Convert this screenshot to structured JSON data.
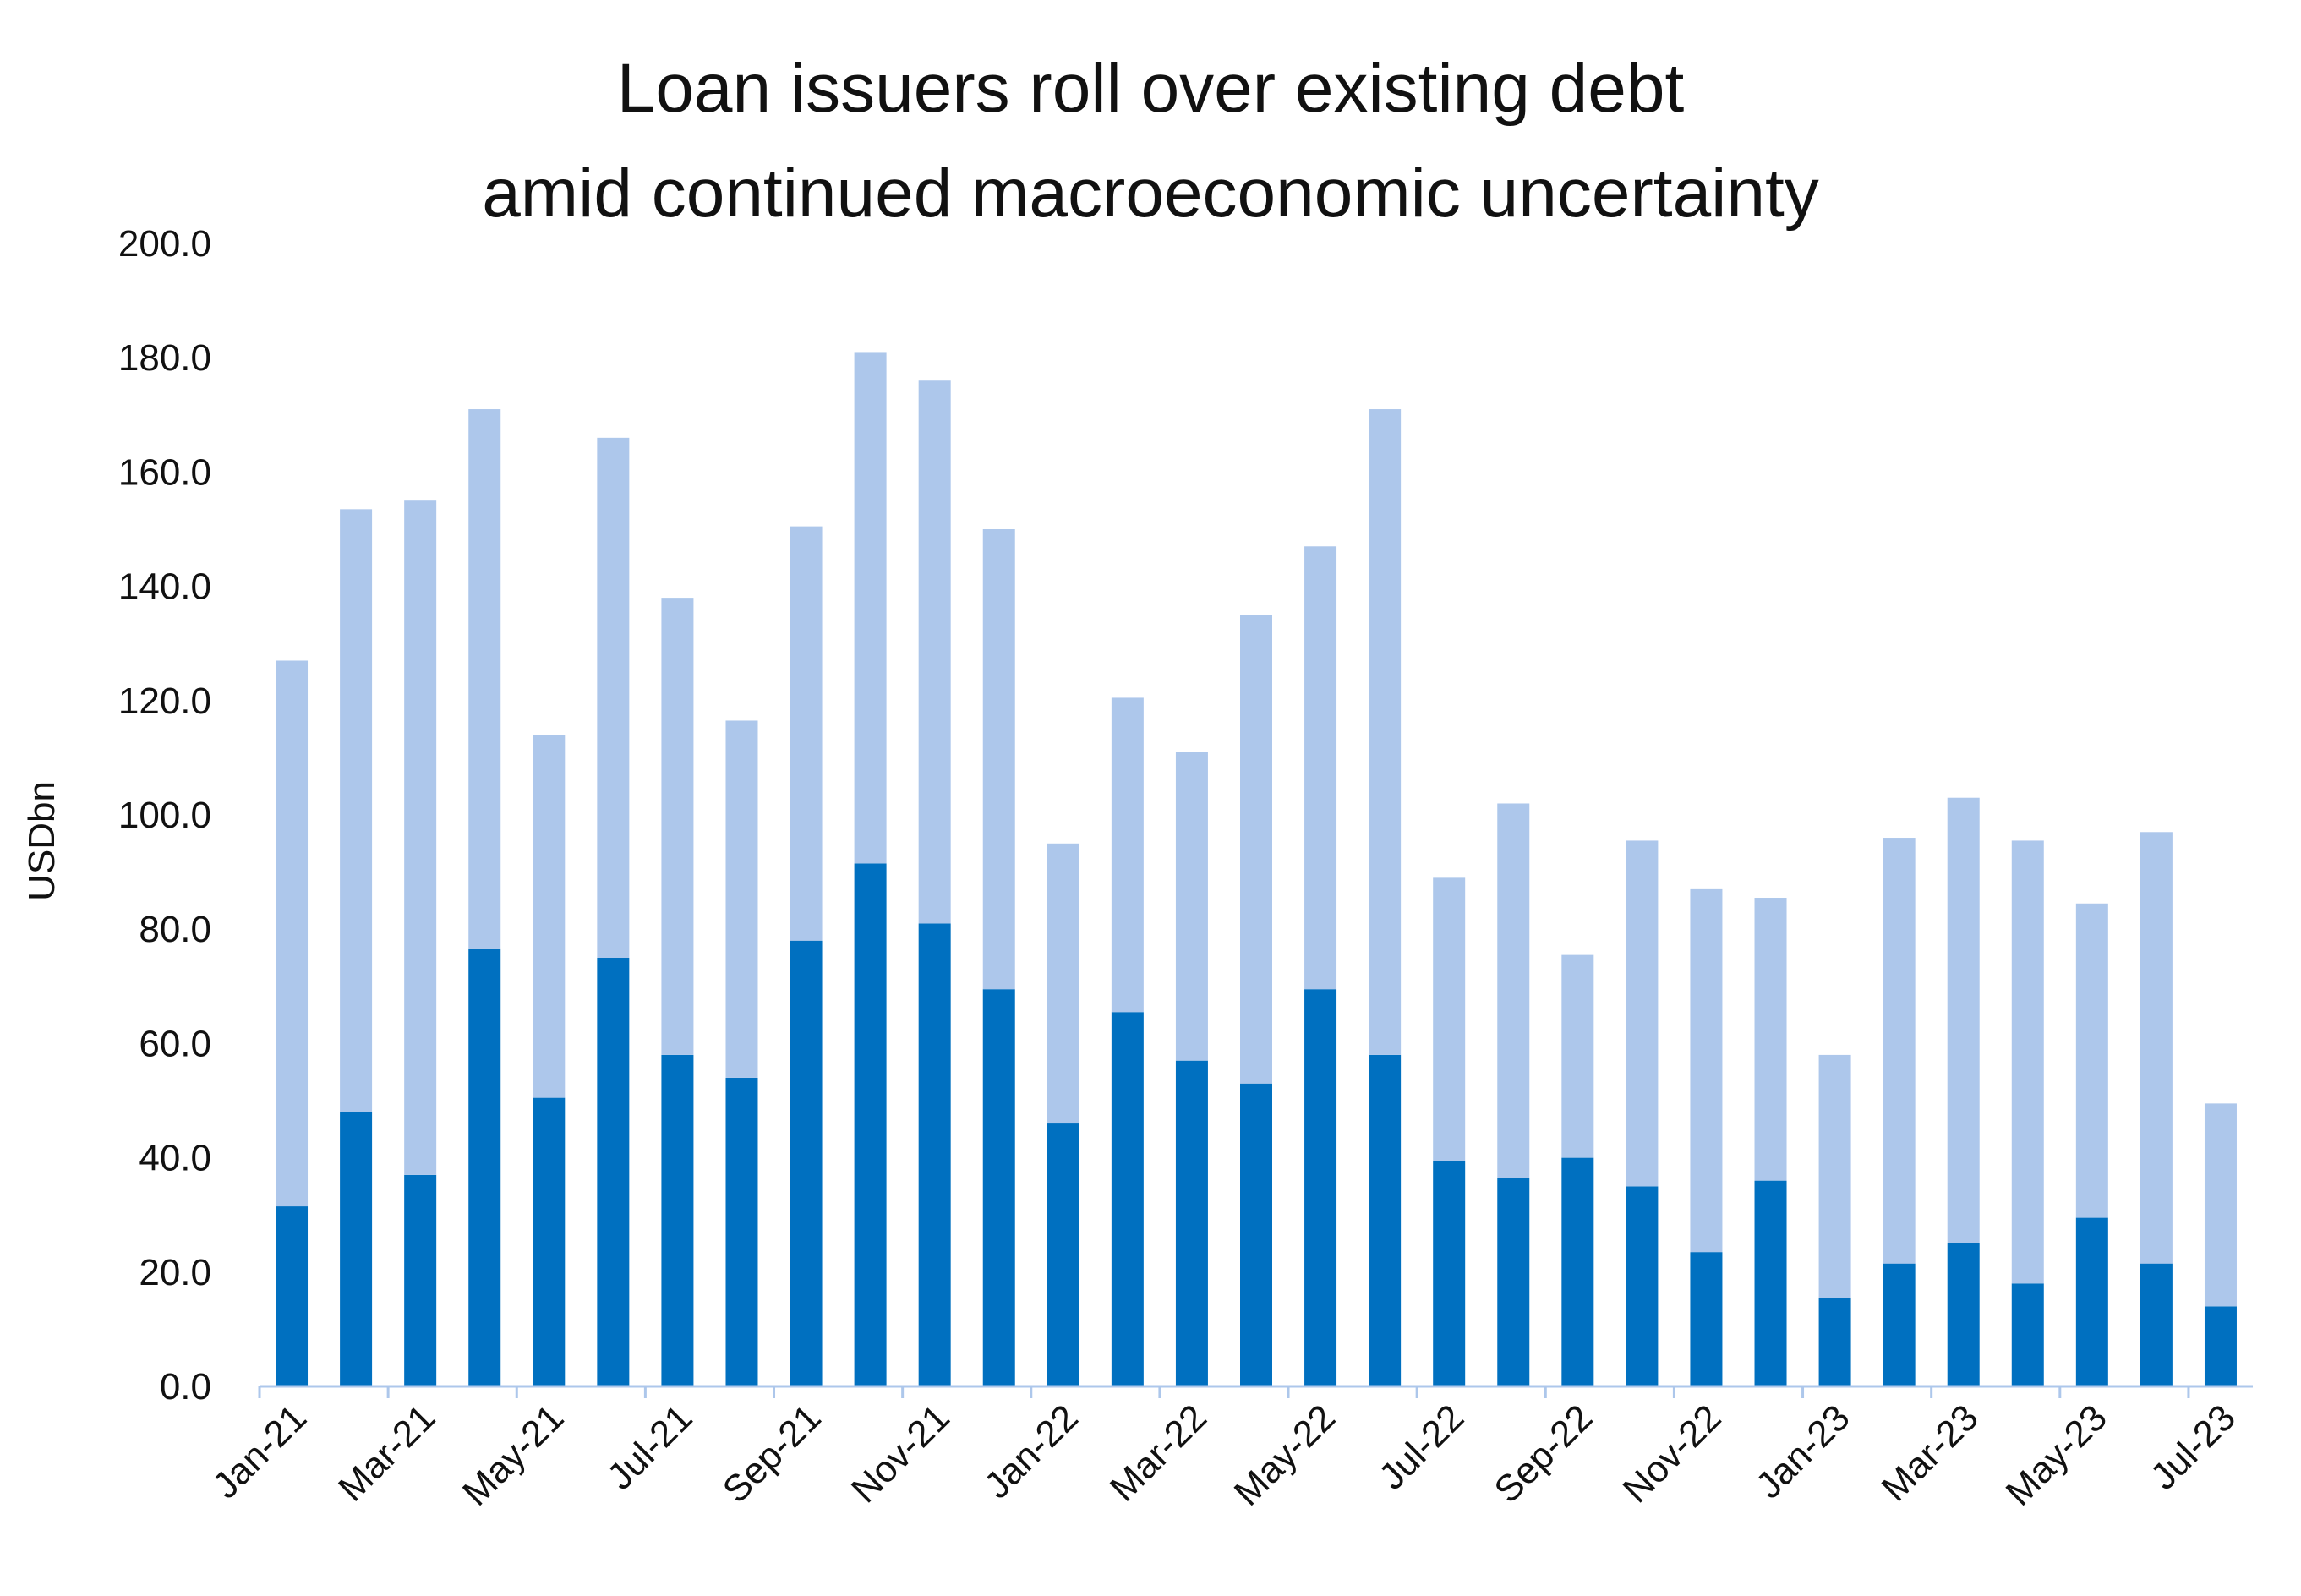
{
  "chart_data": {
    "type": "bar",
    "stacked": true,
    "title": [
      "Loan issuers roll over existing debt",
      "amid continued macroeconomic uncertainty"
    ],
    "xlabel": "",
    "ylabel": "USDbn",
    "ylim": [
      0,
      200
    ],
    "yticks": [
      0,
      20,
      40,
      60,
      80,
      100,
      120,
      140,
      160,
      180,
      200
    ],
    "ytick_labels": [
      "0.0",
      "20.0",
      "40.0",
      "60.0",
      "80.0",
      "100.0",
      "120.0",
      "140.0",
      "160.0",
      "180.0",
      "200.0"
    ],
    "xtick_labels": [
      "Jan-21",
      "Mar-21",
      "May-21",
      "Jul-21",
      "Sep-21",
      "Nov-21",
      "Jan-22",
      "Mar-22",
      "May-22",
      "Jul-22",
      "Sep-22",
      "Nov-22",
      "Jan-23",
      "Mar-23",
      "May-23",
      "Jul-23"
    ],
    "categories": [
      "Jan-21",
      "Feb-21",
      "Mar-21",
      "Apr-21",
      "May-21",
      "Jun-21",
      "Jul-21",
      "Aug-21",
      "Sep-21",
      "Oct-21",
      "Nov-21",
      "Dec-21",
      "Jan-22",
      "Feb-22",
      "Mar-22",
      "Apr-22",
      "May-22",
      "Jun-22",
      "Jul-22",
      "Aug-22",
      "Sep-22",
      "Oct-22",
      "Nov-22",
      "Dec-22",
      "Jan-23",
      "Feb-23",
      "Mar-23",
      "Apr-23",
      "May-23",
      "Jun-23",
      "Jul-23"
    ],
    "series": [
      {
        "color": "#0070c0",
        "values": [
          31.5,
          48.0,
          37.0,
          76.5,
          50.5,
          75.0,
          58.0,
          54.0,
          78.0,
          91.5,
          81.0,
          69.5,
          46.0,
          65.5,
          57.0,
          53.0,
          69.5,
          58.0,
          39.5,
          36.5,
          40.0,
          35.0,
          23.5,
          36.0,
          15.5,
          21.5,
          25.0,
          18.0,
          29.5,
          21.5,
          14.0
        ]
      },
      {
        "color": "#adc7eb",
        "values": [
          95.5,
          105.5,
          118.0,
          94.5,
          63.5,
          91.0,
          80.0,
          62.5,
          72.5,
          89.5,
          95.0,
          80.5,
          49.0,
          55.0,
          54.0,
          82.0,
          77.5,
          113.0,
          49.5,
          65.5,
          35.5,
          60.5,
          63.5,
          49.5,
          42.5,
          74.5,
          78.0,
          77.5,
          55.0,
          75.5,
          35.5
        ]
      }
    ],
    "grid": false,
    "legend": "none"
  }
}
